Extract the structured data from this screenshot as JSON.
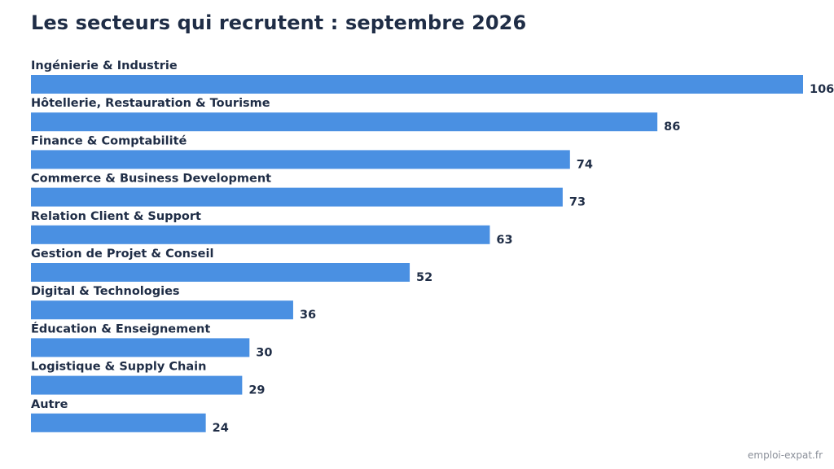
{
  "title": "Les secteurs qui recrutent : septembre 2026",
  "source": "emploi-expat.fr",
  "colors": {
    "bar": "#4a90e2",
    "text": "#1f2d46",
    "source": "#8a8f99"
  },
  "chart_data": {
    "type": "bar",
    "orientation": "horizontal",
    "title": "Les secteurs qui recrutent : septembre 2026",
    "xlabel": "",
    "ylabel": "",
    "grid": false,
    "legend": "none",
    "xlim": [
      0,
      106
    ],
    "categories": [
      "Ingénierie & Industrie",
      "Hôtellerie, Restauration & Tourisme",
      "Finance & Comptabilité",
      "Commerce & Business Development",
      "Relation Client & Support",
      "Gestion de Projet & Conseil",
      "Digital & Technologies",
      "Éducation & Enseignement",
      "Logistique & Supply Chain",
      "Autre"
    ],
    "values": [
      106,
      86,
      74,
      73,
      63,
      52,
      36,
      30,
      29,
      24
    ]
  }
}
